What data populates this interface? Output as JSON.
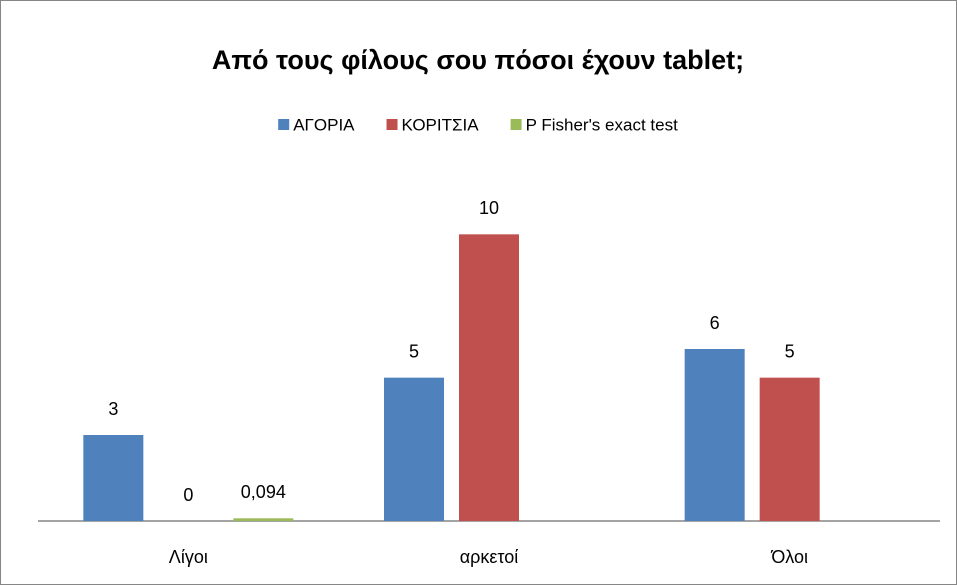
{
  "chart_data": {
    "type": "bar",
    "title": "Από τους φίλους σου πόσοι έχουν tablet;",
    "categories": [
      "Λίγοι",
      "αρκετοί",
      "Όλοι"
    ],
    "series": [
      {
        "name": "ΑΓΟΡΙΑ",
        "color": "#4f81bd",
        "values": [
          3,
          5,
          6
        ]
      },
      {
        "name": "ΚΟΡΙΤΣΙΑ",
        "color": "#c0504d",
        "values": [
          0,
          10,
          5
        ]
      },
      {
        "name": "P Fisher's exact test",
        "color": "#9bbb59",
        "values": [
          0.094,
          null,
          null
        ],
        "value_labels": [
          "0,094",
          null,
          null
        ]
      }
    ],
    "ylim": [
      0,
      12
    ],
    "legend": "top"
  }
}
